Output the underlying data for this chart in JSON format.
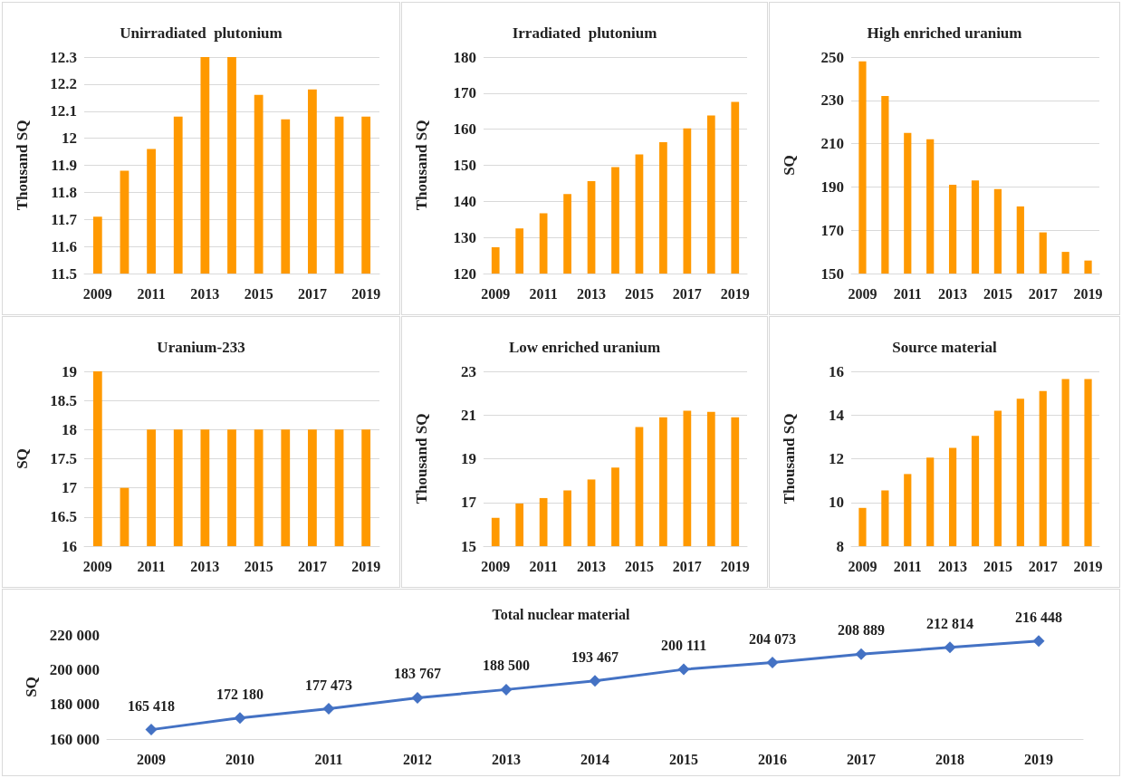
{
  "chart_data": [
    {
      "type": "bar",
      "title": "Unirradiated  plutonium",
      "ylabel": "Thousand SQ",
      "categories": [
        "2009",
        null,
        "2011",
        null,
        "2013",
        null,
        "2015",
        null,
        "2017",
        null,
        "2019"
      ],
      "series": [
        {
          "color": "#ff9900",
          "values": [
            11.71,
            11.88,
            11.96,
            12.08,
            12.3,
            12.3,
            12.16,
            12.07,
            12.18,
            12.08,
            12.08
          ]
        }
      ],
      "ylim": [
        11.5,
        12.3
      ],
      "yticks": [
        11.5,
        11.6,
        11.7,
        11.8,
        11.9,
        12,
        12.1,
        12.2,
        12.3
      ],
      "grid": "y"
    },
    {
      "type": "bar",
      "title": "Irradiated  plutonium",
      "ylabel": "Thousand SQ",
      "categories": [
        "2009",
        null,
        "2011",
        null,
        "2013",
        null,
        "2015",
        null,
        "2017",
        null,
        "2019"
      ],
      "series": [
        {
          "color": "#ff9900",
          "values": [
            127.3,
            132.5,
            136.7,
            142,
            145.6,
            149.5,
            153,
            156.4,
            160.2,
            163.8,
            167.6
          ]
        }
      ],
      "ylim": [
        120,
        180
      ],
      "yticks": [
        120,
        130,
        140,
        150,
        160,
        170,
        180
      ],
      "grid": "y"
    },
    {
      "type": "bar",
      "title": "High enriched uranium",
      "ylabel": "SQ",
      "categories": [
        "2009",
        null,
        "2011",
        null,
        "2013",
        null,
        "2015",
        null,
        "2017",
        null,
        "2019"
      ],
      "series": [
        {
          "color": "#ff9900",
          "values": [
            248,
            232,
            215,
            212,
            191,
            193,
            189,
            181,
            169,
            160,
            156
          ]
        }
      ],
      "ylim": [
        150,
        250
      ],
      "yticks": [
        150,
        170,
        190,
        210,
        230,
        250
      ],
      "grid": "y"
    },
    {
      "type": "bar",
      "title": "Uranium-233",
      "ylabel": "SQ",
      "categories": [
        "2009",
        null,
        "2011",
        null,
        "2013",
        null,
        "2015",
        null,
        "2017",
        null,
        "2019"
      ],
      "series": [
        {
          "color": "#ff9900",
          "values": [
            19,
            17,
            18,
            18,
            18,
            18,
            18,
            18,
            18,
            18,
            18
          ]
        }
      ],
      "ylim": [
        16,
        19
      ],
      "yticks": [
        16,
        16.5,
        17,
        17.5,
        18,
        18.5,
        19
      ],
      "grid": "y"
    },
    {
      "type": "bar",
      "title": "Low enriched uranium",
      "ylabel": "Thousand SQ",
      "categories": [
        "2009",
        null,
        "2011",
        null,
        "2013",
        null,
        "2015",
        null,
        "2017",
        null,
        "2019"
      ],
      "series": [
        {
          "color": "#ff9900",
          "values": [
            16.3,
            16.95,
            17.2,
            17.55,
            18.05,
            18.6,
            20.45,
            20.9,
            21.2,
            21.15,
            20.9
          ]
        }
      ],
      "ylim": [
        15,
        23
      ],
      "yticks": [
        15,
        17,
        19,
        21,
        23
      ],
      "grid": "y"
    },
    {
      "type": "bar",
      "title": "Source material",
      "ylabel": "Thousand SQ",
      "categories": [
        "2009",
        null,
        "2011",
        null,
        "2013",
        null,
        "2015",
        null,
        "2017",
        null,
        "2019"
      ],
      "series": [
        {
          "color": "#ff9900",
          "values": [
            9.75,
            10.55,
            11.3,
            12.05,
            12.5,
            13.05,
            14.2,
            14.75,
            15.1,
            15.65,
            15.65
          ]
        }
      ],
      "ylim": [
        8,
        16
      ],
      "yticks": [
        8,
        10,
        12,
        14,
        16
      ],
      "grid": "y"
    },
    {
      "type": "line",
      "title": "Total nuclear material",
      "ylabel": "SQ",
      "categories": [
        "2009",
        "2010",
        "2011",
        "2012",
        "2013",
        "2014",
        "2015",
        "2016",
        "2017",
        "2018",
        "2019"
      ],
      "series": [
        {
          "color": "#4472c4",
          "values": [
            165418,
            172180,
            177473,
            183767,
            188500,
            193467,
            200111,
            204073,
            208889,
            212814,
            216448
          ],
          "value_labels": [
            "165 418",
            "172 180",
            "177 473",
            "183 767",
            "188 500",
            "193 467",
            "200 111",
            "204 073",
            "208 889",
            "212 814",
            "216 448"
          ]
        }
      ],
      "ylim": [
        160000,
        220000
      ],
      "yticks": [
        {
          "value": 160000,
          "label": "160 000"
        },
        {
          "value": 180000,
          "label": "180 000"
        },
        {
          "value": 200000,
          "label": "200 000"
        },
        {
          "value": 220000,
          "label": "220 000"
        }
      ],
      "grid": false,
      "marker": "diamond",
      "line_style": "solid"
    }
  ]
}
